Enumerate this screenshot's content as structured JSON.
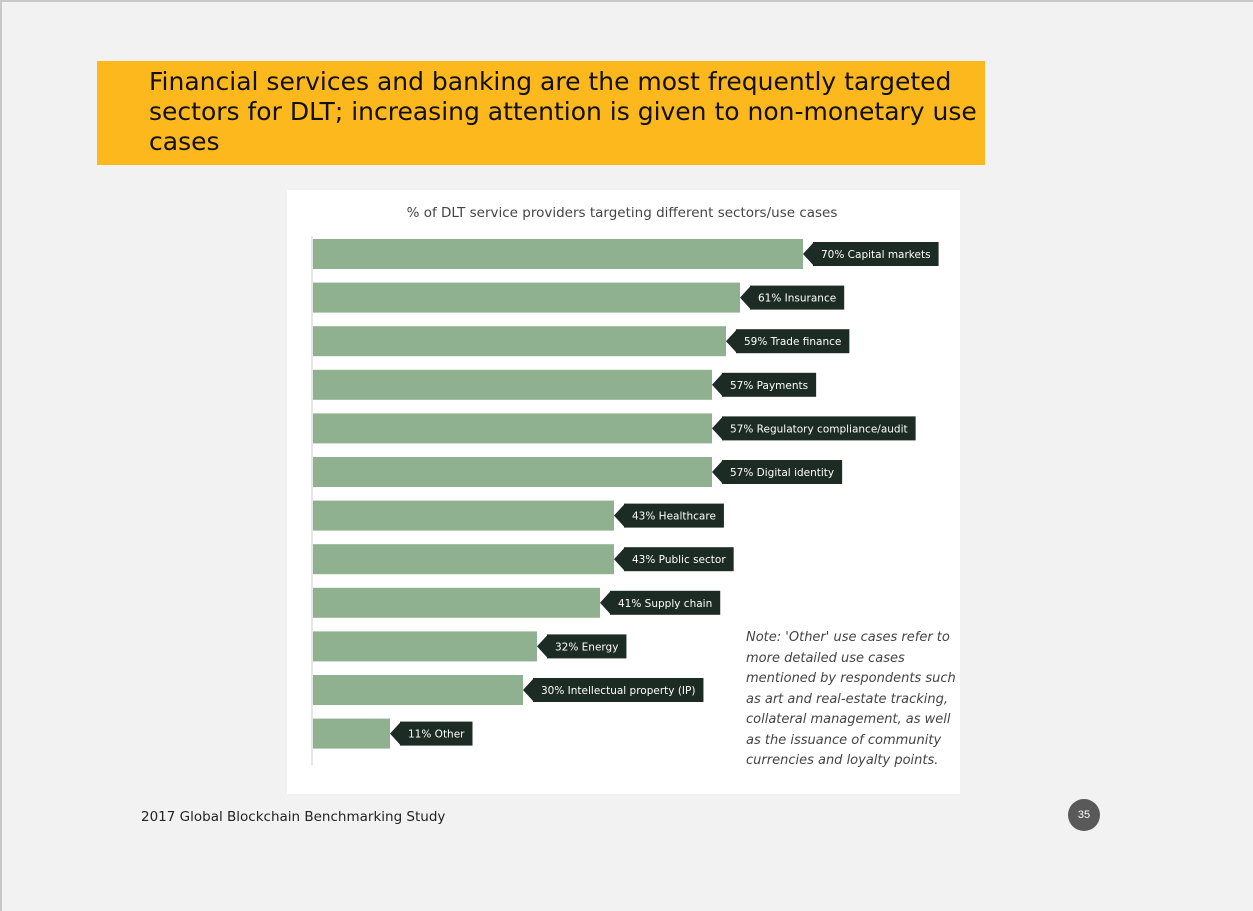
{
  "slide": {
    "title": "Financial services and banking are the most frequently targeted sectors for DLT; increasing attention is given to non-monetary use cases",
    "source": "2017 Global Blockchain Benchmarking Study",
    "page_number": "35"
  },
  "colors": {
    "title_band": "#fdb81e",
    "bar": "#8fb18f",
    "label_bg": "#1c2b24",
    "page_badge": "#595959"
  },
  "chart_data": {
    "type": "bar",
    "orientation": "horizontal",
    "title": "% of DLT service providers targeting different sectors/use cases",
    "categories": [
      "Capital markets",
      "Insurance",
      "Trade finance",
      "Payments",
      "Regulatory compliance/audit",
      "Digital identity",
      "Healthcare",
      "Public sector",
      "Supply chain",
      "Energy",
      "Intellectual property (IP)",
      "Other"
    ],
    "values": [
      70,
      61,
      59,
      57,
      57,
      57,
      43,
      43,
      41,
      32,
      30,
      11
    ],
    "value_labels": [
      "70% Capital markets",
      "61% Insurance",
      "59% Trade finance",
      "57% Payments",
      "57% Regulatory compliance/audit",
      "57% Digital identity",
      "43% Healthcare",
      "43% Public sector",
      "41% Supply chain",
      "32% Energy",
      "30% Intellectual property (IP)",
      "11% Other"
    ],
    "unit": "%",
    "xlim": [
      0,
      70
    ],
    "grid": false,
    "legend": false,
    "note": "Note: 'Other' use cases refer to more detailed use cases mentioned by respondents such as art and real-estate tracking, collateral management, as well as the issuance of community currencies and loyalty points."
  }
}
